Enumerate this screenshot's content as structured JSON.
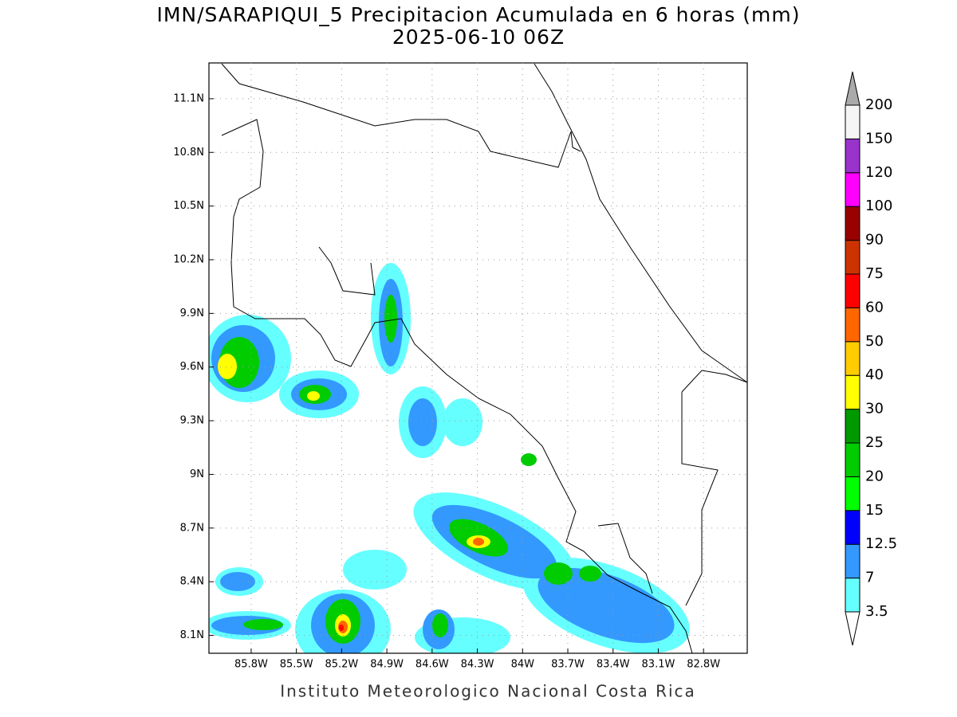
{
  "header": {
    "title": "IMN/SARAPIQUI_5 Precipitacion Acumulada en 6 horas (mm)",
    "subtitle": "2025-06-10 06Z"
  },
  "map": {
    "lonlim": [
      -86.08,
      -82.51
    ],
    "latlim": [
      8.0,
      11.3
    ],
    "lon_ticks": [
      {
        "value": -85.8,
        "label": "85.8W"
      },
      {
        "value": -85.5,
        "label": "85.5W"
      },
      {
        "value": -85.2,
        "label": "85.2W"
      },
      {
        "value": -84.9,
        "label": "84.9W"
      },
      {
        "value": -84.6,
        "label": "84.6W"
      },
      {
        "value": -84.3,
        "label": "84.3W"
      },
      {
        "value": -84.0,
        "label": "84W"
      },
      {
        "value": -83.7,
        "label": "83.7W"
      },
      {
        "value": -83.4,
        "label": "83.4W"
      },
      {
        "value": -83.1,
        "label": "83.1W"
      },
      {
        "value": -82.8,
        "label": "82.8W"
      }
    ],
    "lat_ticks": [
      {
        "value": 8.1,
        "label": "8.1N"
      },
      {
        "value": 8.4,
        "label": "8.4N"
      },
      {
        "value": 8.7,
        "label": "8.7N"
      },
      {
        "value": 9.0,
        "label": "9N"
      },
      {
        "value": 9.3,
        "label": "9.3N"
      },
      {
        "value": 9.6,
        "label": "9.6N"
      },
      {
        "value": 9.9,
        "label": "9.9N"
      },
      {
        "value": 10.2,
        "label": "10.2N"
      },
      {
        "value": 10.5,
        "label": "10.5N"
      },
      {
        "value": 10.8,
        "label": "10.8N"
      },
      {
        "value": 11.1,
        "label": "11.1N"
      }
    ],
    "grid": true,
    "colorbar": {
      "levels": [
        3.5,
        7,
        12.5,
        15,
        20,
        25,
        30,
        40,
        50,
        60,
        75,
        90,
        100,
        120,
        150,
        200
      ],
      "colors": [
        "#66ffff",
        "#3399ff",
        "#0000ff",
        "#00ff00",
        "#00cc00",
        "#009900",
        "#ffff00",
        "#ffcc00",
        "#ff6600",
        "#ff0000",
        "#cc3300",
        "#990000",
        "#ff00ff",
        "#9933cc",
        "#f5f5f5"
      ],
      "under_color": "#ffffff",
      "over_color": "#aaaaaa"
    }
  },
  "footer": "Instituto Meteorologico Nacional Costa Rica"
}
